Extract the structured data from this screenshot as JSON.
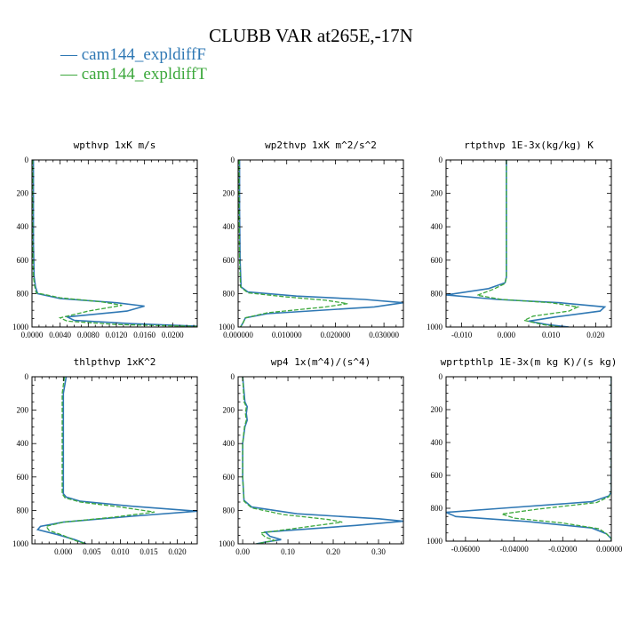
{
  "figure": {
    "title": "CLUBB VAR at265E,-17N",
    "colors": {
      "series1": "#2f78b4",
      "series2": "#3ca83c",
      "axis": "#000000"
    },
    "legend": [
      {
        "prefix": "— ",
        "label": "cam144_expldiffF",
        "color": "#2f78b4",
        "dash": false
      },
      {
        "prefix": "— ",
        "label": "cam144_expldiffT",
        "color": "#3ca83c",
        "dash": true
      }
    ]
  },
  "chart_data": [
    {
      "type": "line",
      "title": "wpthvp   1xK m/s",
      "xlim": [
        0,
        0.0235
      ],
      "ylim": [
        1000,
        0
      ],
      "xticks": [
        0,
        0.004,
        0.008,
        0.012,
        0.016,
        0.02
      ],
      "xticklabels": [
        "0.0000",
        "0.0040",
        "0.0080",
        "0.0120",
        "0.0160",
        "0.0200"
      ],
      "yticks": [
        0,
        200,
        400,
        600,
        800,
        1000
      ],
      "yticklabels": [
        "0",
        "200",
        "400",
        "600",
        "800",
        "1000"
      ],
      "series": [
        {
          "name": "cam144_expldiffF",
          "points": [
            [
              0.0002,
              0
            ],
            [
              0.0002,
              200
            ],
            [
              0.0002,
              500
            ],
            [
              0.0003,
              700
            ],
            [
              0.0005,
              760
            ],
            [
              0.0008,
              800
            ],
            [
              0.004,
              830
            ],
            [
              0.012,
              855
            ],
            [
              0.016,
              875
            ],
            [
              0.0135,
              905
            ],
            [
              0.005,
              940
            ],
            [
              0.006,
              960
            ],
            [
              0.014,
              980
            ],
            [
              0.0235,
              995
            ]
          ]
        },
        {
          "name": "cam144_expldiffT",
          "points": [
            [
              0.0001,
              0
            ],
            [
              0.0001,
              200
            ],
            [
              0.0001,
              500
            ],
            [
              0.0002,
              700
            ],
            [
              0.0004,
              760
            ],
            [
              0.0006,
              795
            ],
            [
              0.004,
              825
            ],
            [
              0.01,
              850
            ],
            [
              0.0128,
              870
            ],
            [
              0.008,
              905
            ],
            [
              0.004,
              945
            ],
            [
              0.005,
              965
            ],
            [
              0.012,
              985
            ],
            [
              0.0235,
              997
            ]
          ]
        }
      ]
    },
    {
      "type": "line",
      "title": "wp2thvp   1xK m^2/s^2",
      "xlim": [
        0,
        0.034
      ],
      "ylim": [
        1000,
        0
      ],
      "xticks": [
        0,
        0.01,
        0.02,
        0.03
      ],
      "xticklabels": [
        "0.000000",
        "0.010000",
        "0.020000",
        "0.030000"
      ],
      "yticks": [
        0,
        200,
        400,
        600,
        800,
        1000
      ],
      "yticklabels": [
        "0",
        "200",
        "400",
        "600",
        "800",
        "1000"
      ],
      "series": [
        {
          "name": "cam144_expldiffF",
          "points": [
            [
              0.0003,
              0
            ],
            [
              0.0003,
              300
            ],
            [
              0.0004,
              600
            ],
            [
              0.0006,
              760
            ],
            [
              0.002,
              790
            ],
            [
              0.012,
              815
            ],
            [
              0.026,
              835
            ],
            [
              0.034,
              855
            ],
            [
              0.028,
              880
            ],
            [
              0.006,
              920
            ],
            [
              0.0015,
              945
            ],
            [
              0.001,
              975
            ],
            [
              0.0005,
              1000
            ]
          ]
        },
        {
          "name": "cam144_expldiffT",
          "points": [
            [
              0.0002,
              0
            ],
            [
              0.0002,
              300
            ],
            [
              0.0003,
              600
            ],
            [
              0.0005,
              760
            ],
            [
              0.002,
              795
            ],
            [
              0.01,
              820
            ],
            [
              0.018,
              840
            ],
            [
              0.0225,
              860
            ],
            [
              0.018,
              880
            ],
            [
              0.006,
              915
            ],
            [
              0.0015,
              945
            ],
            [
              0.001,
              975
            ],
            [
              0.0005,
              1000
            ]
          ]
        }
      ]
    },
    {
      "type": "line",
      "title": "rtpthvp   1E-3x(kg/kg) K",
      "xlim": [
        -0.0135,
        0.0235
      ],
      "ylim": [
        1000,
        0
      ],
      "xticks": [
        -0.01,
        0,
        0.01,
        0.02
      ],
      "xticklabels": [
        "-0.010",
        "0.000",
        "0.010",
        "0.020"
      ],
      "yticks": [
        0,
        200,
        400,
        600,
        800,
        1000
      ],
      "yticklabels": [
        "0",
        "200",
        "400",
        "600",
        "800",
        "1000"
      ],
      "series": [
        {
          "name": "cam144_expldiffF",
          "points": [
            [
              0,
              0
            ],
            [
              0,
              200
            ],
            [
              0,
              500
            ],
            [
              0,
              700
            ],
            [
              -0.0003,
              735
            ],
            [
              -0.004,
              770
            ],
            [
              -0.0135,
              808
            ],
            [
              -0.002,
              835
            ],
            [
              0.012,
              855
            ],
            [
              0.022,
              880
            ],
            [
              0.021,
              905
            ],
            [
              0.011,
              940
            ],
            [
              0.005,
              965
            ],
            [
              0.009,
              985
            ],
            [
              0.014,
              1000
            ]
          ]
        },
        {
          "name": "cam144_expldiffT",
          "points": [
            [
              0,
              0
            ],
            [
              0,
              200
            ],
            [
              0,
              500
            ],
            [
              0,
              700
            ],
            [
              -0.0003,
              740
            ],
            [
              -0.003,
              775
            ],
            [
              -0.0065,
              810
            ],
            [
              -0.001,
              835
            ],
            [
              0.01,
              855
            ],
            [
              0.016,
              880
            ],
            [
              0.014,
              905
            ],
            [
              0.006,
              935
            ],
            [
              0.004,
              960
            ],
            [
              0.008,
              985
            ],
            [
              0.012,
              1000
            ]
          ]
        }
      ]
    },
    {
      "type": "line",
      "title": "thlpthvp   1xK^2",
      "xlim": [
        -0.0055,
        0.0235
      ],
      "ylim": [
        1000,
        0
      ],
      "xticks": [
        0,
        0.005,
        0.01,
        0.015,
        0.02
      ],
      "xticklabels": [
        "0.000",
        "0.005",
        "0.010",
        "0.015",
        "0.020"
      ],
      "yticks": [
        0,
        200,
        400,
        600,
        800,
        1000
      ],
      "yticklabels": [
        "0",
        "200",
        "400",
        "600",
        "800",
        "1000"
      ],
      "series": [
        {
          "name": "cam144_expldiffF",
          "points": [
            [
              0.0005,
              0
            ],
            [
              0,
              100
            ],
            [
              0,
              300
            ],
            [
              0,
              500
            ],
            [
              0,
              700
            ],
            [
              0.0005,
              720
            ],
            [
              0.003,
              745
            ],
            [
              0.012,
              775
            ],
            [
              0.0235,
              805
            ],
            [
              0.012,
              835
            ],
            [
              0,
              870
            ],
            [
              -0.004,
              895
            ],
            [
              -0.0045,
              915
            ],
            [
              -0.001,
              945
            ],
            [
              0.002,
              975
            ],
            [
              0.004,
              1000
            ]
          ]
        },
        {
          "name": "cam144_expldiffT",
          "points": [
            [
              0.0002,
              0
            ],
            [
              -0.0002,
              100
            ],
            [
              -0.0002,
              300
            ],
            [
              -0.0002,
              500
            ],
            [
              -0.0002,
              700
            ],
            [
              0.0003,
              725
            ],
            [
              0.003,
              750
            ],
            [
              0.01,
              780
            ],
            [
              0.016,
              810
            ],
            [
              0.009,
              840
            ],
            [
              0,
              870
            ],
            [
              -0.003,
              895
            ],
            [
              -0.0025,
              920
            ],
            [
              0,
              950
            ],
            [
              0.002,
              980
            ],
            [
              0.004,
              1000
            ]
          ]
        }
      ]
    },
    {
      "type": "line",
      "title": "wp4   1x(m^4)/(s^4)",
      "xlim": [
        -0.01,
        0.355
      ],
      "ylim": [
        1000,
        0
      ],
      "xticks": [
        0,
        0.1,
        0.2,
        0.3
      ],
      "xticklabels": [
        "0.00",
        "0.10",
        "0.20",
        "0.30"
      ],
      "yticks": [
        0,
        200,
        400,
        600,
        800,
        1000
      ],
      "yticklabels": [
        "0",
        "200",
        "400",
        "600",
        "800",
        "1000"
      ],
      "series": [
        {
          "name": "cam144_expldiffF",
          "points": [
            [
              0,
              0
            ],
            [
              0.005,
              150
            ],
            [
              0.01,
              180
            ],
            [
              0.008,
              220
            ],
            [
              0.01,
              260
            ],
            [
              0.005,
              300
            ],
            [
              0,
              400
            ],
            [
              0,
              600
            ],
            [
              0.003,
              740
            ],
            [
              0.02,
              780
            ],
            [
              0.12,
              820
            ],
            [
              0.3,
              850
            ],
            [
              0.355,
              865
            ],
            [
              0.25,
              890
            ],
            [
              0.05,
              930
            ],
            [
              0.06,
              955
            ],
            [
              0.085,
              975
            ],
            [
              0.05,
              990
            ],
            [
              0.03,
              1000
            ]
          ]
        },
        {
          "name": "cam144_expldiffT",
          "points": [
            [
              0,
              0
            ],
            [
              0.003,
              150
            ],
            [
              0.008,
              180
            ],
            [
              0.006,
              220
            ],
            [
              0.008,
              260
            ],
            [
              0.004,
              300
            ],
            [
              0,
              400
            ],
            [
              0,
              600
            ],
            [
              0.003,
              745
            ],
            [
              0.02,
              785
            ],
            [
              0.09,
              825
            ],
            [
              0.19,
              855
            ],
            [
              0.22,
              870
            ],
            [
              0.15,
              895
            ],
            [
              0.04,
              935
            ],
            [
              0.05,
              960
            ],
            [
              0.07,
              980
            ],
            [
              0.04,
              995
            ],
            [
              0.03,
              1000
            ]
          ]
        }
      ]
    },
    {
      "type": "line",
      "title": "wprtpthlp   1E-3x(m kg K)/(s kg)",
      "xlim": [
        -0.068,
        0
      ],
      "ylim": [
        1000,
        0
      ],
      "xticks": [
        -0.06,
        -0.04,
        -0.02,
        0
      ],
      "xticklabels": [
        "-0.06000",
        "-0.04000",
        "-0.02000",
        "0.000000"
      ],
      "yticks": [
        0,
        200,
        400,
        600,
        800,
        1000
      ],
      "yticklabels": [
        "0",
        "200",
        "400",
        "600",
        "800",
        "1000"
      ],
      "series": [
        {
          "name": "cam144_expldiffF",
          "points": [
            [
              0,
              0
            ],
            [
              0,
              300
            ],
            [
              0,
              600
            ],
            [
              0,
              700
            ],
            [
              -0.001,
              725
            ],
            [
              -0.008,
              760
            ],
            [
              -0.045,
              800
            ],
            [
              -0.068,
              825
            ],
            [
              -0.064,
              850
            ],
            [
              -0.035,
              880
            ],
            [
              -0.008,
              920
            ],
            [
              -0.002,
              955
            ],
            [
              0,
              985
            ],
            [
              0,
              1000
            ]
          ]
        },
        {
          "name": "cam144_expldiffT",
          "points": [
            [
              0,
              0
            ],
            [
              0,
              300
            ],
            [
              0,
              600
            ],
            [
              0,
              700
            ],
            [
              -0.001,
              730
            ],
            [
              -0.006,
              765
            ],
            [
              -0.03,
              805
            ],
            [
              -0.045,
              835
            ],
            [
              -0.04,
              860
            ],
            [
              -0.02,
              890
            ],
            [
              -0.005,
              925
            ],
            [
              -0.002,
              955
            ],
            [
              0,
              985
            ],
            [
              0,
              1000
            ]
          ]
        }
      ]
    }
  ]
}
